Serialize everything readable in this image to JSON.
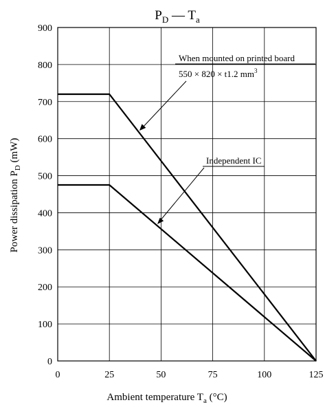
{
  "chart_data": {
    "type": "line",
    "title": "P",
    "title_sub1": "D",
    "title_dash": " — T",
    "title_sub2": "a",
    "xlabel": "Ambient temperature  T",
    "xlabel_sub": "a",
    "xlabel_unit": " (°C)",
    "ylabel": "Power dissipation  P",
    "ylabel_sub": "D",
    "ylabel_unit": " (mW)",
    "xlim": [
      0,
      125
    ],
    "ylim": [
      0,
      900
    ],
    "x_ticks": [
      "0",
      "25",
      "50",
      "75",
      "100",
      "125"
    ],
    "y_ticks": [
      "0",
      "100",
      "200",
      "300",
      "400",
      "500",
      "600",
      "700",
      "800",
      "900"
    ],
    "grid": true,
    "series": [
      {
        "x": [
          0,
          25,
          125
        ],
        "y": [
          720,
          720,
          0
        ]
      },
      {
        "x": [
          0,
          25,
          125
        ],
        "y": [
          475,
          475,
          0
        ]
      }
    ],
    "annotations": [
      {
        "line1": "When mounted on printed board",
        "line2": "550 × 820 × t1.2 mm",
        "line2_sup": "3"
      },
      {
        "line1": "Independent IC"
      }
    ]
  }
}
